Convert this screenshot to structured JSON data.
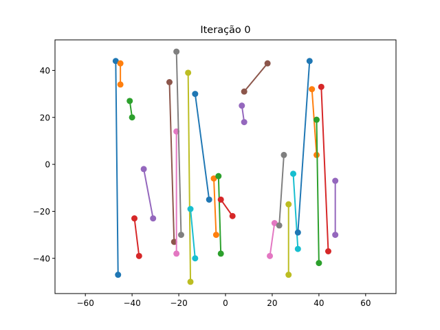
{
  "chart_data": {
    "type": "line",
    "title": "Iteração 0",
    "xlabel": "",
    "ylabel": "",
    "xlim": [
      -73,
      73
    ],
    "ylim": [
      -55,
      53
    ],
    "xticks": [
      -60,
      -40,
      -20,
      0,
      20,
      40,
      60
    ],
    "yticks": [
      -40,
      -20,
      0,
      20,
      40
    ],
    "grid": false,
    "series": [
      {
        "color": "#1f77b4",
        "points": [
          [
            -47,
            44
          ],
          [
            -46,
            -47
          ]
        ]
      },
      {
        "color": "#ff7f0e",
        "points": [
          [
            -45,
            43
          ],
          [
            -45,
            34
          ]
        ]
      },
      {
        "color": "#2ca02c",
        "points": [
          [
            -41,
            27
          ],
          [
            -40,
            20
          ]
        ]
      },
      {
        "color": "#d62728",
        "points": [
          [
            -39,
            -23
          ],
          [
            -37,
            -39
          ]
        ]
      },
      {
        "color": "#9467bd",
        "points": [
          [
            -35,
            -2
          ],
          [
            -31,
            -23
          ]
        ]
      },
      {
        "color": "#8c564b",
        "points": [
          [
            -24,
            35
          ],
          [
            -22,
            -33
          ]
        ]
      },
      {
        "color": "#e377c2",
        "points": [
          [
            -21,
            14
          ],
          [
            -21,
            -38
          ]
        ]
      },
      {
        "color": "#7f7f7f",
        "points": [
          [
            -21,
            48
          ],
          [
            -19,
            -30
          ]
        ]
      },
      {
        "color": "#bcbd22",
        "points": [
          [
            -16,
            39
          ],
          [
            -15,
            -50
          ]
        ]
      },
      {
        "color": "#17becf",
        "points": [
          [
            -15,
            -19
          ],
          [
            -13,
            -40
          ]
        ]
      },
      {
        "color": "#1f77b4",
        "points": [
          [
            -13,
            30
          ],
          [
            -7,
            -15
          ]
        ]
      },
      {
        "color": "#ff7f0e",
        "points": [
          [
            -5,
            -6
          ],
          [
            -4,
            -30
          ]
        ]
      },
      {
        "color": "#2ca02c",
        "points": [
          [
            -3,
            -5
          ],
          [
            -2,
            -38
          ]
        ]
      },
      {
        "color": "#d62728",
        "points": [
          [
            -2,
            -15
          ],
          [
            3,
            -22
          ]
        ]
      },
      {
        "color": "#9467bd",
        "points": [
          [
            7,
            25
          ],
          [
            8,
            18
          ]
        ]
      },
      {
        "color": "#8c564b",
        "points": [
          [
            8,
            31
          ],
          [
            18,
            43
          ]
        ]
      },
      {
        "color": "#e377c2",
        "points": [
          [
            19,
            -39
          ],
          [
            21,
            -25
          ]
        ]
      },
      {
        "color": "#7f7f7f",
        "points": [
          [
            25,
            4
          ],
          [
            23,
            -26
          ]
        ]
      },
      {
        "color": "#bcbd22",
        "points": [
          [
            27,
            -17
          ],
          [
            27,
            -47
          ]
        ]
      },
      {
        "color": "#17becf",
        "points": [
          [
            29,
            -4
          ],
          [
            31,
            -36
          ]
        ]
      },
      {
        "color": "#1f77b4",
        "points": [
          [
            36,
            44
          ],
          [
            31,
            -29
          ]
        ]
      },
      {
        "color": "#ff7f0e",
        "points": [
          [
            37,
            32
          ],
          [
            39,
            4
          ]
        ]
      },
      {
        "color": "#2ca02c",
        "points": [
          [
            39,
            19
          ],
          [
            40,
            -42
          ]
        ]
      },
      {
        "color": "#d62728",
        "points": [
          [
            41,
            33
          ],
          [
            44,
            -37
          ]
        ]
      },
      {
        "color": "#9467bd",
        "points": [
          [
            47,
            -7
          ],
          [
            47,
            -30
          ]
        ]
      }
    ]
  }
}
